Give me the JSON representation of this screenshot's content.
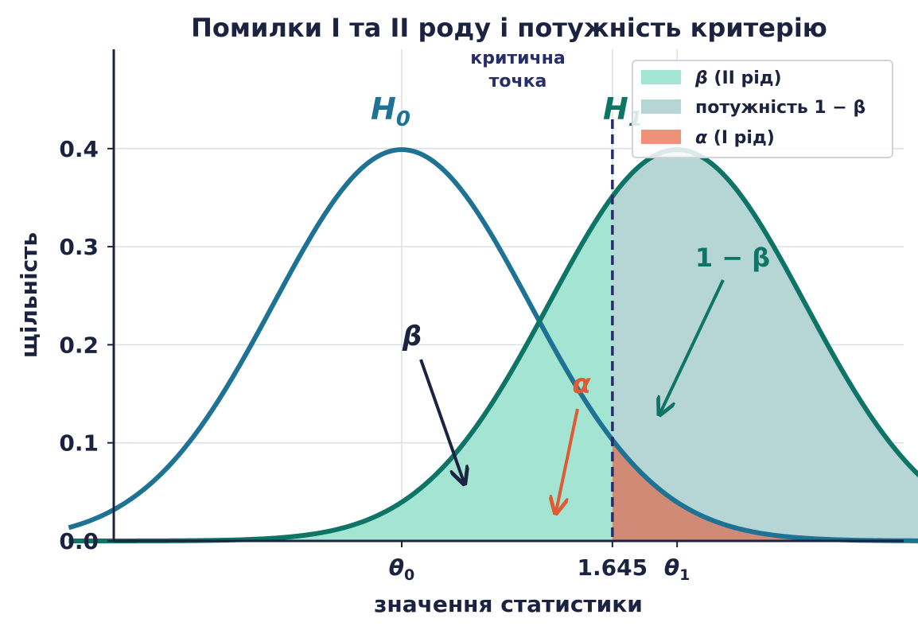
{
  "chart_data": {
    "type": "area",
    "title": "Помилки I та II роду і потужність критерію",
    "xlabel": "значення статистики",
    "ylabel": "щільність",
    "xlim": [
      -2.6,
      4.8
    ],
    "ylim": [
      0,
      0.5
    ],
    "x_ticks": [
      {
        "value": 0,
        "label": "θ",
        "sub": "0"
      },
      {
        "value": 1.645,
        "label": "1.645",
        "sub": ""
      },
      {
        "value": 2.15,
        "label": "θ",
        "sub": "1"
      }
    ],
    "y_ticks": [
      {
        "value": 0.0,
        "label": "0.0"
      },
      {
        "value": 0.1,
        "label": "0.1"
      },
      {
        "value": 0.2,
        "label": "0.2"
      },
      {
        "value": 0.3,
        "label": "0.3"
      },
      {
        "value": 0.4,
        "label": "0.4"
      }
    ],
    "grid": true,
    "series": [
      {
        "name": "H0",
        "mean": 0,
        "sd": 1,
        "color": "#1e7293",
        "x_range": [
          -2.6,
          4.8
        ]
      },
      {
        "name": "H1",
        "mean": 2.15,
        "sd": 1,
        "color": "#0e7466",
        "x_range": [
          -2.6,
          4.8
        ]
      }
    ],
    "critical_value": 1.645,
    "regions": [
      {
        "name": "β (II рід)",
        "color": "#a3e4d2",
        "curve": "H1",
        "from": -2.6,
        "to": 1.645
      },
      {
        "name": "потужність 1 − β",
        "color": "#b6d5d5",
        "curve": "H1",
        "from": 1.645,
        "to": 4.8
      },
      {
        "name": "α (I рід)",
        "color": "#d4826a",
        "curve": "H0",
        "from": 1.645,
        "to": 4.8
      }
    ],
    "legend": {
      "placement": "top-right",
      "entries": [
        {
          "swatch": "#a3e4d2",
          "symbol": "β",
          "text": " (II рід)"
        },
        {
          "swatch": "#b6d5d5",
          "symbol": "",
          "text": "потужність 1 − β"
        },
        {
          "swatch": "#ef9078",
          "symbol": "α",
          "text": " (I рід)"
        }
      ]
    },
    "annotations": {
      "h0_label": {
        "text": "H",
        "sub": "0",
        "color": "#1e7293"
      },
      "h1_label": {
        "text": "H",
        "sub": "1",
        "color": "#0e7466"
      },
      "critical_label": {
        "line1": "критична",
        "line2": "точка",
        "color": "#272d6a"
      },
      "beta": {
        "text": "β",
        "color": "#1c2340"
      },
      "alpha": {
        "text": "α",
        "color": "#e05a33"
      },
      "power": {
        "text": "1 − β",
        "color": "#0e7466"
      }
    }
  }
}
